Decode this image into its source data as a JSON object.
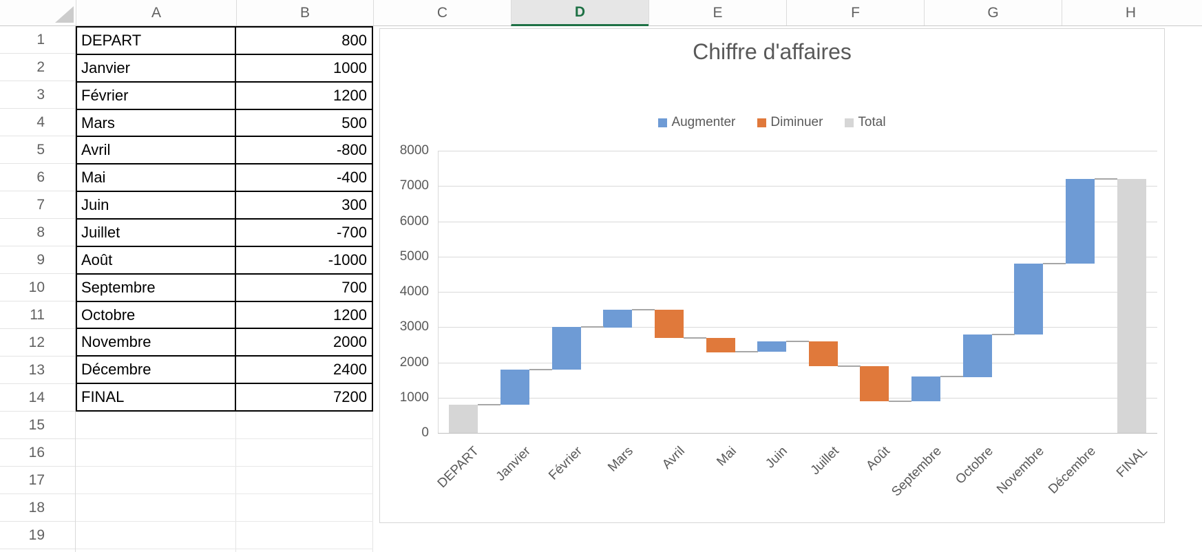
{
  "columns": {
    "letters": [
      "A",
      "B",
      "C",
      "D",
      "E",
      "F",
      "G",
      "H"
    ],
    "selected": "D"
  },
  "rows": {
    "numbers": [
      "1",
      "2",
      "3",
      "4",
      "5",
      "6",
      "7",
      "8",
      "9",
      "10",
      "11",
      "12",
      "13",
      "14",
      "15",
      "16",
      "17",
      "18",
      "19"
    ]
  },
  "table": {
    "items": [
      {
        "label": "DEPART",
        "value": "800"
      },
      {
        "label": "Janvier",
        "value": "1000"
      },
      {
        "label": "Février",
        "value": "1200"
      },
      {
        "label": "Mars",
        "value": "500"
      },
      {
        "label": "Avril",
        "value": "-800"
      },
      {
        "label": "Mai",
        "value": "-400"
      },
      {
        "label": "Juin",
        "value": "300"
      },
      {
        "label": "Juillet",
        "value": "-700"
      },
      {
        "label": "Août",
        "value": "-1000"
      },
      {
        "label": "Septembre",
        "value": "700"
      },
      {
        "label": "Octobre",
        "value": "1200"
      },
      {
        "label": "Novembre",
        "value": "2000"
      },
      {
        "label": "Décembre",
        "value": "2400"
      },
      {
        "label": "FINAL",
        "value": "7200"
      }
    ]
  },
  "chart": {
    "title": "Chiffre d'affaires",
    "legend": [
      {
        "label": "Augmenter",
        "color": "#6E9BD5"
      },
      {
        "label": "Diminuer",
        "color": "#E0793B"
      },
      {
        "label": "Total",
        "color": "#D6D6D6"
      }
    ]
  },
  "chart_data": {
    "type": "bar",
    "subtype": "waterfall",
    "title": "Chiffre d'affaires",
    "categories": [
      "DEPART",
      "Janvier",
      "Février",
      "Mars",
      "Avril",
      "Mai",
      "Juin",
      "Juillet",
      "Août",
      "Septembre",
      "Octobre",
      "Novembre",
      "Décembre",
      "FINAL"
    ],
    "values": [
      800,
      1000,
      1200,
      500,
      -800,
      -400,
      300,
      -700,
      -1000,
      700,
      1200,
      2000,
      2400,
      7200
    ],
    "bar_types": [
      "total",
      "increase",
      "increase",
      "increase",
      "decrease",
      "decrease",
      "increase",
      "decrease",
      "decrease",
      "increase",
      "increase",
      "increase",
      "increase",
      "total"
    ],
    "cumulative": [
      800,
      1800,
      3000,
      3500,
      2700,
      2300,
      2600,
      1900,
      900,
      1600,
      2800,
      4800,
      7200,
      7200
    ],
    "xlabel": "",
    "ylabel": "",
    "ylim": [
      0,
      8000
    ],
    "yticks": [
      0,
      1000,
      2000,
      3000,
      4000,
      5000,
      6000,
      7000,
      8000
    ],
    "grid": true,
    "legend_position": "top",
    "series_colors": {
      "increase": "#6E9BD5",
      "decrease": "#E0793B",
      "total": "#D6D6D6"
    }
  },
  "colors": {
    "header_text": "#616161",
    "header_selected_text": "#1E7145",
    "grid_line": "#D9D9D9",
    "table_border": "#000000",
    "chart_border": "#D6D6D6",
    "axis_text": "#595959",
    "axis_line": "#BFBFBF",
    "connector": "#A6A6A6"
  }
}
